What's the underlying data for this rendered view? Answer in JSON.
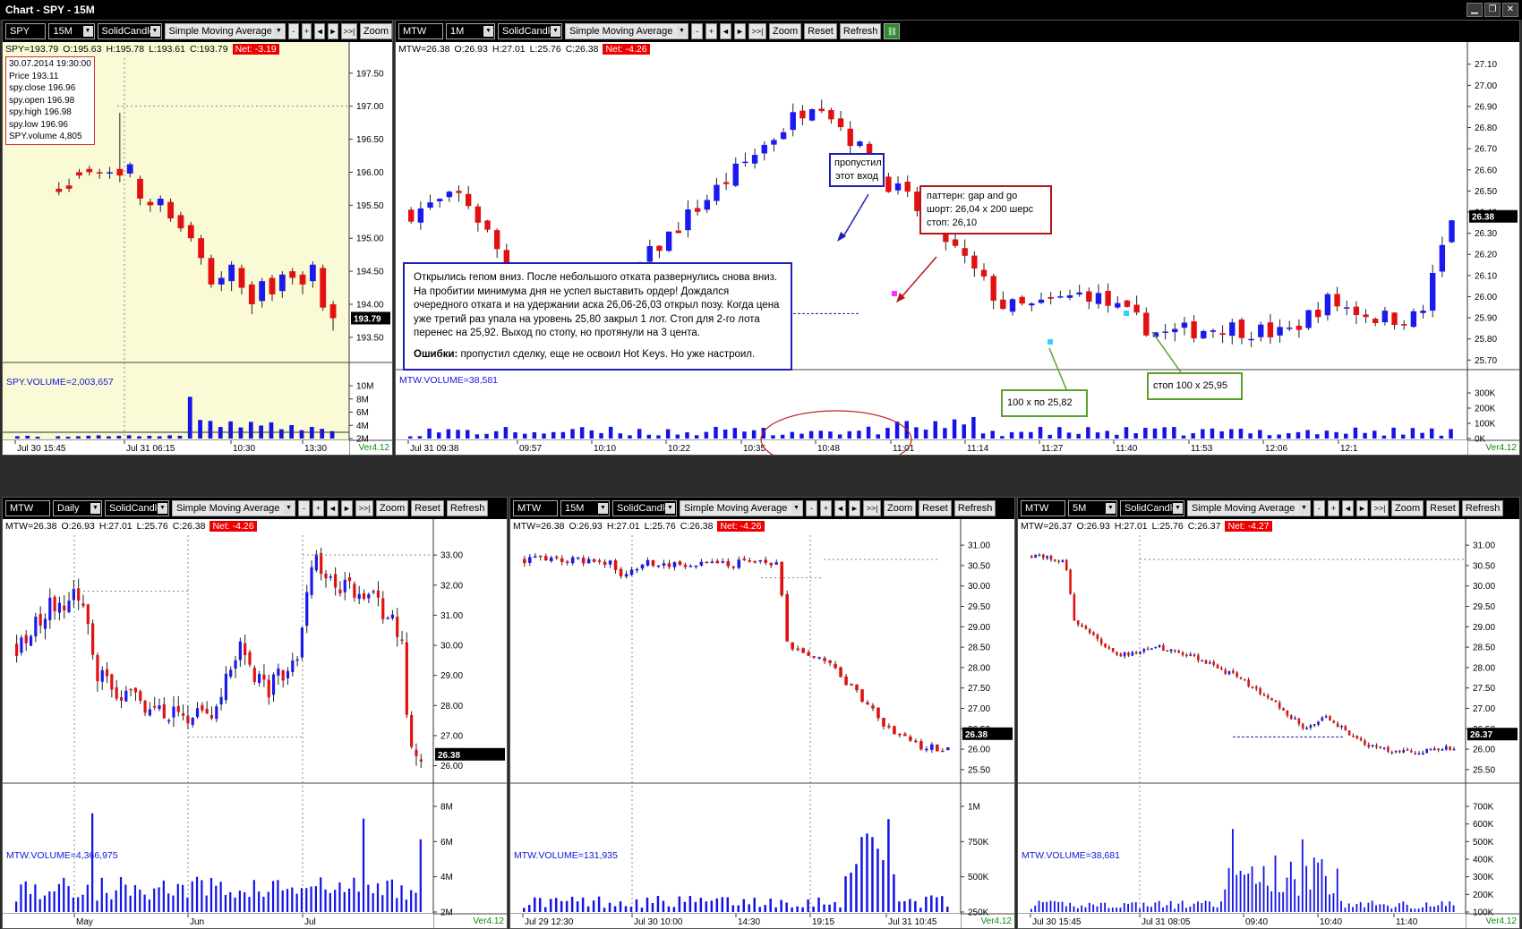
{
  "window": {
    "title": "Chart - SPY - 15M"
  },
  "toolbar": {
    "chart_style": "SolidCandle",
    "indicator": "Simple Moving Average",
    "zoom": "Zoom",
    "reset": "Reset",
    "refresh": "Refresh",
    "nav": [
      "-",
      "+",
      "◄",
      "►",
      ">>|"
    ]
  },
  "version": "Ver4.12",
  "panels": {
    "spy": {
      "symbol": "SPY",
      "timeframe": "15M",
      "ohlc": {
        "sym": "SPY=193.79",
        "o": "O:195.63",
        "h": "H:195.78",
        "l": "L:193.61",
        "c": "C:193.79",
        "net": "Net: -3.19"
      },
      "data_window": [
        "30.07.2014 19:30:00",
        "Price  193.11",
        "spy.close  196.96",
        "spy.open  196.98",
        "spy.high  196.98",
        "spy.low  196.96",
        "SPY.volume  4,805"
      ],
      "volume_label": "SPY.VOLUME=2,003,657",
      "price_ticks": [
        "197.50",
        "197.00",
        "196.50",
        "196.00",
        "195.50",
        "195.00",
        "194.50",
        "194.00",
        "193.50"
      ],
      "last": "193.79",
      "vol_ticks": [
        "10M",
        "8M",
        "6M",
        "4M",
        "2M"
      ],
      "time_ticks": [
        "Jul 30 15:45",
        "Jul 31 06:15",
        "10:30",
        "13:30"
      ]
    },
    "mtw1m": {
      "symbol": "MTW",
      "timeframe": "1M",
      "ohlc": {
        "sym": "MTW=26.38",
        "o": "O:26.93",
        "h": "H:27.01",
        "l": "L:25.76",
        "c": "C:26.38",
        "net": "Net: -4.26"
      },
      "volume_label": "MTW.VOLUME=38,581",
      "price_ticks": [
        "27.10",
        "27.00",
        "26.90",
        "26.80",
        "26.70",
        "26.60",
        "26.50",
        "26.40",
        "26.30",
        "26.20",
        "26.10",
        "26.00",
        "25.90",
        "25.80",
        "25.70"
      ],
      "last": "26.38",
      "vol_ticks": [
        "300K",
        "200K",
        "100K",
        "0K"
      ],
      "time_ticks": [
        "Jul 31 09:38",
        "09:57",
        "10:10",
        "10:22",
        "10:35",
        "10:48",
        "11:01",
        "11:14",
        "11:27",
        "11:40",
        "11:53",
        "12:06",
        "12:1"
      ],
      "annotations": {
        "missed": [
          "пропустил",
          "этот вход"
        ],
        "pattern": [
          "паттерн: gap and go",
          "шорт: 26,04 х 200 шерс",
          "стоп: 26,10"
        ],
        "story": "Открылись гепом вниз. После небольшого отката развернулись снова вниз. На пробитии минимума дня не успел выставить ордер! Дождался очередного отката и на удержании аска 26,06-26,03 открыл позу. Когда цена уже третий раз упала на уровень 25,80 закрыл 1 лот. Стоп для 2-го лота перенес на 25,92. Выход по стопу, но протянули на 3 цента.",
        "errors_label": "Ошибки:",
        "errors_text": " пропустил сделку, еще не освоил Hot Keys. Но уже настроил.",
        "exit1": "100 х по 25,82",
        "exit2": "стоп 100 х 25,95"
      }
    },
    "mtwd": {
      "symbol": "MTW",
      "timeframe": "Daily",
      "ohlc": {
        "sym": "MTW=26.38",
        "o": "O:26.93",
        "h": "H:27.01",
        "l": "L:25.76",
        "c": "C:26.38",
        "net": "Net: -4.26"
      },
      "volume_label": "MTW.VOLUME=4,366,975",
      "price_ticks": [
        "33.00",
        "32.00",
        "31.00",
        "30.00",
        "29.00",
        "28.00",
        "27.00",
        "26.00"
      ],
      "last": "26.38",
      "vol_ticks": [
        "8M",
        "6M",
        "4M",
        "2M"
      ],
      "time_ticks": [
        "May",
        "Jun",
        "Jul"
      ]
    },
    "mtw15": {
      "symbol": "MTW",
      "timeframe": "15M",
      "ohlc": {
        "sym": "MTW=26.38",
        "o": "O:26.93",
        "h": "H:27.01",
        "l": "L:25.76",
        "c": "C:26.38",
        "net": "Net: -4.26"
      },
      "volume_label": "MTW.VOLUME=131,935",
      "price_ticks": [
        "31.00",
        "30.50",
        "30.00",
        "29.50",
        "29.00",
        "28.50",
        "28.00",
        "27.50",
        "27.00",
        "26.50",
        "26.00",
        "25.50"
      ],
      "last": "26.38",
      "vol_ticks": [
        "1M",
        "750K",
        "500K",
        "250K"
      ],
      "time_ticks": [
        "Jul 29 12:30",
        "Jul 30 10:00",
        "14:30",
        "19:15",
        "Jul 31 10:45"
      ]
    },
    "mtw5": {
      "symbol": "MTW",
      "timeframe": "5M",
      "ohlc": {
        "sym": "MTW=26.37",
        "o": "O:26.93",
        "h": "H:27.01",
        "l": "L:25.76",
        "c": "C:26.37",
        "net": "Net: -4.27"
      },
      "volume_label": "MTW.VOLUME=38,681",
      "price_ticks": [
        "31.00",
        "30.50",
        "30.00",
        "29.50",
        "29.00",
        "28.50",
        "28.00",
        "27.50",
        "27.00",
        "26.50",
        "26.00",
        "25.50"
      ],
      "last": "26.37",
      "vol_ticks": [
        "700K",
        "600K",
        "500K",
        "400K",
        "300K",
        "200K",
        "100K"
      ],
      "time_ticks": [
        "Jul 30 15:45",
        "Jul 31 08:05",
        "09:40",
        "10:40",
        "11:40"
      ]
    }
  },
  "chart_data": [
    {
      "panel": "spy",
      "type": "candlestick",
      "ylim": [
        193.2,
        197.7
      ],
      "close": [
        196.92,
        196.9,
        196.88,
        null,
        195.7,
        195.75,
        195.95,
        196.0,
        195.98,
        196.0,
        195.95,
        196.12,
        195.6,
        195.5,
        195.6,
        195.3,
        195.15,
        195.0,
        194.7,
        194.3,
        194.4,
        194.6,
        194.25,
        194.0,
        194.35,
        194.15,
        194.45,
        194.4,
        194.3,
        194.6,
        193.95,
        193.79
      ],
      "open": [
        196.95,
        196.93,
        196.9,
        null,
        195.75,
        195.8,
        196.0,
        196.05,
        196.0,
        195.98,
        196.05,
        195.98,
        195.9,
        195.55,
        195.5,
        195.55,
        195.35,
        195.2,
        195.0,
        194.7,
        194.3,
        194.35,
        194.55,
        194.3,
        194.05,
        194.4,
        194.2,
        194.5,
        194.45,
        194.35,
        194.55,
        194.0
      ],
      "high": [
        196.97,
        196.95,
        196.92,
        null,
        195.85,
        195.9,
        196.05,
        196.1,
        196.05,
        196.08,
        196.9,
        196.15,
        195.95,
        195.6,
        195.65,
        195.6,
        195.4,
        195.25,
        195.05,
        194.75,
        194.5,
        194.65,
        194.6,
        194.35,
        194.4,
        194.45,
        194.5,
        194.55,
        194.5,
        194.65,
        194.6,
        194.05
      ],
      "low": [
        196.9,
        196.85,
        196.8,
        null,
        195.65,
        195.7,
        195.9,
        195.95,
        195.9,
        195.9,
        195.85,
        195.92,
        195.5,
        195.4,
        195.4,
        195.25,
        195.1,
        194.95,
        194.6,
        194.25,
        194.2,
        194.2,
        194.15,
        193.85,
        193.95,
        194.05,
        194.1,
        194.3,
        194.15,
        194.25,
        193.9,
        193.6
      ],
      "volume": [
        0.5,
        0.6,
        0.4,
        0.3,
        0.5,
        0.4,
        0.5,
        0.6,
        0.7,
        0.5,
        0.6,
        0.7,
        0.5,
        0.6,
        0.5,
        0.7,
        0.6,
        9,
        4,
        3.8,
        2.5,
        3.7,
        2.4,
        3.6,
        2.8,
        3.5,
        2.0,
        2.9,
        1.8,
        2.5,
        2.1,
        1.6
      ],
      "vol_max": 11
    },
    {
      "panel": "mtw1m",
      "type": "candlestick",
      "ylim": [
        25.68,
        27.12
      ],
      "anchor_close": 26.38
    },
    {
      "panel": "mtwd",
      "type": "candlestick",
      "ylim": [
        25.6,
        33.6
      ],
      "anchor_close": 26.38
    },
    {
      "panel": "mtw15",
      "type": "candlestick",
      "ylim": [
        25.3,
        31.2
      ],
      "anchor_close": 26.38
    },
    {
      "panel": "mtw5",
      "type": "candlestick",
      "ylim": [
        25.3,
        31.2
      ],
      "anchor_close": 26.37
    }
  ]
}
